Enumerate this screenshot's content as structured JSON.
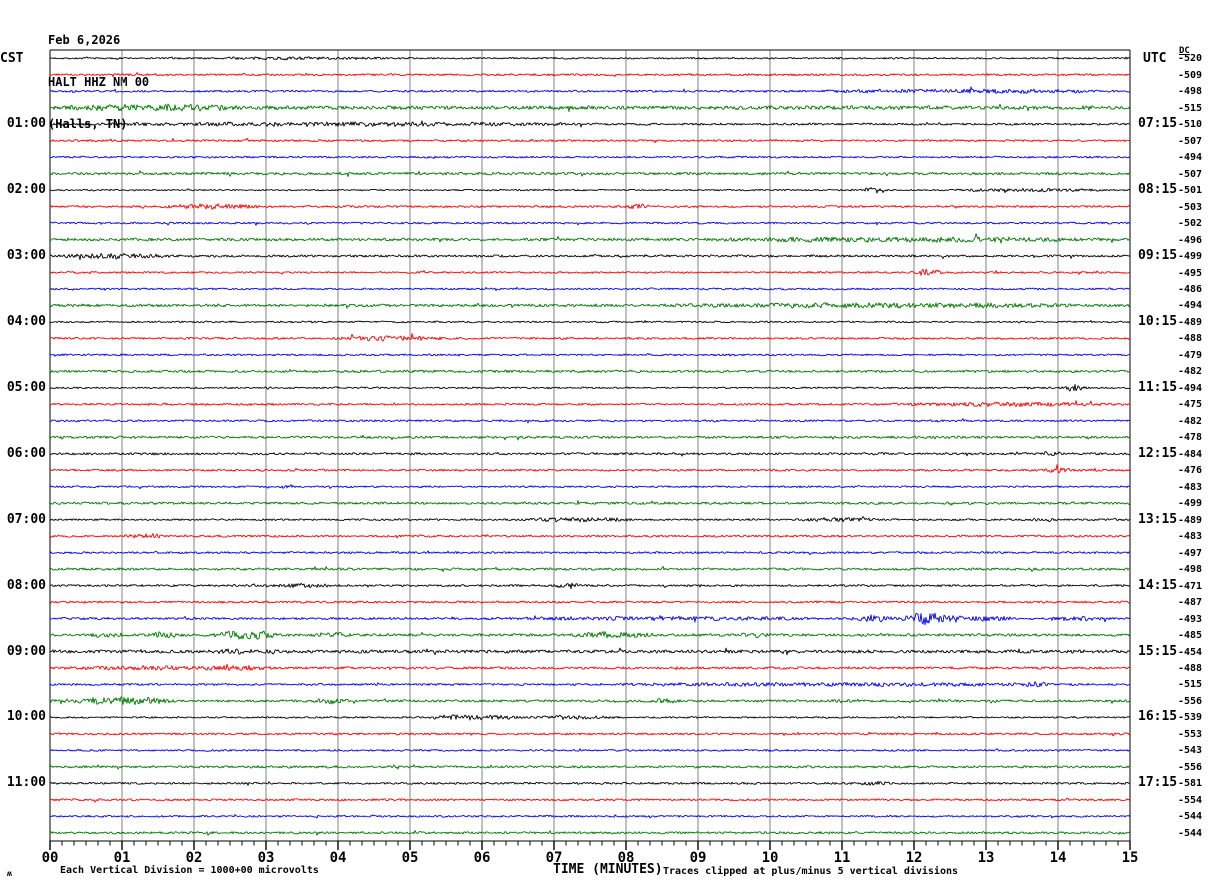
{
  "header": {
    "date": "Feb 6,2026",
    "station": "HALT HHZ NM 00",
    "location": "(Halls, TN)",
    "left_tz": "CST",
    "right_tz": "UTC",
    "dc_header": "DC"
  },
  "footer": {
    "left_note": "Each Vertical Division = 1000+00 microvolts",
    "axis_label": "TIME (MINUTES)",
    "right_note": "Traces clipped at plus/minus 5 vertical divisions",
    "watermark": "ʍ"
  },
  "chart_data": {
    "type": "line",
    "subtype": "helicorder-seismogram",
    "title": "Feb 6,2026 HALT HHZ NM 00 (Halls, TN)",
    "xlabel": "TIME (MINUTES)",
    "x_ticks": [
      "00",
      "01",
      "02",
      "03",
      "04",
      "05",
      "06",
      "07",
      "08",
      "09",
      "10",
      "11",
      "12",
      "13",
      "14",
      "15"
    ],
    "x_range_minutes": [
      0,
      15
    ],
    "minutes_per_row": 15,
    "rows_per_hour": 4,
    "minor_tick_intervals_per_minute": 6,
    "grid": true,
    "grid_color": "#808080",
    "axis_color": "#000000",
    "colors": {
      "black": "#000000",
      "red": "#ff0000",
      "blue": "#0000ee",
      "green": "#007700"
    },
    "color_cycle": [
      "black",
      "red",
      "blue",
      "green"
    ],
    "rows": [
      {
        "color": "black",
        "cst": "",
        "utc": "",
        "dc": "-520",
        "amp": 0.9,
        "events": [
          [
            2,
            5,
            1.3
          ]
        ]
      },
      {
        "color": "red",
        "cst": "",
        "utc": "",
        "dc": "-509",
        "amp": 1.1,
        "events": []
      },
      {
        "color": "blue",
        "cst": "",
        "utc": "",
        "dc": "-498",
        "amp": 1.1,
        "events": [
          [
            10.5,
            15,
            1.9
          ]
        ]
      },
      {
        "color": "green",
        "cst": "",
        "utc": "",
        "dc": "-515",
        "amp": 2.0,
        "events": [
          [
            0,
            3,
            2.8
          ]
        ]
      },
      {
        "color": "black",
        "cst": "01:00",
        "utc": "07:15",
        "dc": "-510",
        "amp": 1.1,
        "events": [
          [
            0,
            8,
            1.9
          ]
        ]
      },
      {
        "color": "red",
        "cst": "",
        "utc": "",
        "dc": "-507",
        "amp": 1.1,
        "events": []
      },
      {
        "color": "blue",
        "cst": "",
        "utc": "",
        "dc": "-494",
        "amp": 1.0,
        "events": []
      },
      {
        "color": "green",
        "cst": "",
        "utc": "",
        "dc": "-507",
        "amp": 1.4,
        "events": []
      },
      {
        "color": "black",
        "cst": "02:00",
        "utc": "08:15",
        "dc": "-501",
        "amp": 0.8,
        "events": [
          [
            11.2,
            11.7,
            2.8
          ],
          [
            12.4,
            14.8,
            1.5
          ]
        ]
      },
      {
        "color": "red",
        "cst": "",
        "utc": "",
        "dc": "-503",
        "amp": 1.1,
        "events": [
          [
            1.5,
            3.0,
            2.4
          ],
          [
            8.0,
            8.4,
            2.2
          ]
        ]
      },
      {
        "color": "blue",
        "cst": "",
        "utc": "",
        "dc": "-502",
        "amp": 1.0,
        "events": []
      },
      {
        "color": "green",
        "cst": "",
        "utc": "",
        "dc": "-496",
        "amp": 1.5,
        "events": [
          [
            8.5,
            15,
            2.2
          ]
        ]
      },
      {
        "color": "black",
        "cst": "03:00",
        "utc": "09:15",
        "dc": "-499",
        "amp": 1.2,
        "events": [
          [
            0,
            1.8,
            2.4
          ]
        ]
      },
      {
        "color": "red",
        "cst": "",
        "utc": "",
        "dc": "-495",
        "amp": 1.0,
        "events": [
          [
            12.0,
            12.4,
            3.4
          ]
        ]
      },
      {
        "color": "blue",
        "cst": "",
        "utc": "",
        "dc": "-486",
        "amp": 1.0,
        "events": []
      },
      {
        "color": "green",
        "cst": "",
        "utc": "",
        "dc": "-494",
        "amp": 1.5,
        "events": [
          [
            8,
            15,
            2.1
          ]
        ]
      },
      {
        "color": "black",
        "cst": "04:00",
        "utc": "10:15",
        "dc": "-489",
        "amp": 0.9,
        "events": []
      },
      {
        "color": "red",
        "cst": "",
        "utc": "",
        "dc": "-488",
        "amp": 1.1,
        "events": [
          [
            3.9,
            5.6,
            2.3
          ]
        ]
      },
      {
        "color": "blue",
        "cst": "",
        "utc": "",
        "dc": "-479",
        "amp": 1.0,
        "events": []
      },
      {
        "color": "green",
        "cst": "",
        "utc": "",
        "dc": "-482",
        "amp": 1.3,
        "events": []
      },
      {
        "color": "black",
        "cst": "05:00",
        "utc": "11:15",
        "dc": "-494",
        "amp": 0.9,
        "events": [
          [
            14.0,
            14.4,
            3.4
          ]
        ]
      },
      {
        "color": "red",
        "cst": "",
        "utc": "",
        "dc": "-475",
        "amp": 1.1,
        "events": [
          [
            11.5,
            15,
            1.9
          ]
        ]
      },
      {
        "color": "blue",
        "cst": "",
        "utc": "",
        "dc": "-482",
        "amp": 1.1,
        "events": []
      },
      {
        "color": "green",
        "cst": "",
        "utc": "",
        "dc": "-478",
        "amp": 1.3,
        "events": []
      },
      {
        "color": "black",
        "cst": "06:00",
        "utc": "12:15",
        "dc": "-484",
        "amp": 1.2,
        "events": [
          [
            13.7,
            14.1,
            1.9
          ]
        ]
      },
      {
        "color": "red",
        "cst": "",
        "utc": "",
        "dc": "-476",
        "amp": 1.1,
        "events": [
          [
            13.8,
            14.2,
            2.5
          ]
        ]
      },
      {
        "color": "blue",
        "cst": "",
        "utc": "",
        "dc": "-483",
        "amp": 1.0,
        "events": [
          [
            3.1,
            3.5,
            2.3
          ]
        ]
      },
      {
        "color": "green",
        "cst": "",
        "utc": "",
        "dc": "-499",
        "amp": 1.3,
        "events": []
      },
      {
        "color": "black",
        "cst": "07:00",
        "utc": "13:15",
        "dc": "-489",
        "amp": 1.0,
        "events": [
          [
            6.5,
            8.2,
            2.2
          ],
          [
            10.3,
            11.6,
            1.9
          ],
          [
            13.6,
            14.0,
            2.1
          ]
        ]
      },
      {
        "color": "red",
        "cst": "",
        "utc": "",
        "dc": "-483",
        "amp": 1.1,
        "events": [
          [
            1.0,
            1.6,
            2.5
          ]
        ]
      },
      {
        "color": "blue",
        "cst": "",
        "utc": "",
        "dc": "-497",
        "amp": 1.1,
        "events": []
      },
      {
        "color": "green",
        "cst": "",
        "utc": "",
        "dc": "-498",
        "amp": 1.3,
        "events": []
      },
      {
        "color": "black",
        "cst": "08:00",
        "utc": "14:15",
        "dc": "-471",
        "amp": 1.1,
        "events": [
          [
            2.9,
            4.1,
            1.9
          ],
          [
            7.0,
            7.4,
            3.4
          ]
        ]
      },
      {
        "color": "red",
        "cst": "",
        "utc": "",
        "dc": "-487",
        "amp": 1.1,
        "events": []
      },
      {
        "color": "blue",
        "cst": "",
        "utc": "",
        "dc": "-493",
        "amp": 1.2,
        "events": [
          [
            6,
            11,
            1.8
          ],
          [
            11.1,
            11.8,
            3.2
          ],
          [
            11.8,
            12.7,
            6.0
          ],
          [
            12.7,
            13.4,
            2.5
          ],
          [
            13.9,
            14.7,
            2.5
          ]
        ]
      },
      {
        "color": "green",
        "cst": "",
        "utc": "",
        "dc": "-485",
        "amp": 1.4,
        "events": [
          [
            0.5,
            1.1,
            2.2
          ],
          [
            1.3,
            1.9,
            2.7
          ],
          [
            2.2,
            3.2,
            4.2
          ],
          [
            3.6,
            4.2,
            2.7
          ],
          [
            7.2,
            8.5,
            3.0
          ],
          [
            9.5,
            10.1,
            2.0
          ]
        ]
      },
      {
        "color": "black",
        "cst": "09:00",
        "utc": "15:15",
        "dc": "-454",
        "amp": 1.7,
        "events": [
          [
            2.2,
            3.2,
            2.1
          ]
        ]
      },
      {
        "color": "red",
        "cst": "",
        "utc": "",
        "dc": "-488",
        "amp": 1.3,
        "events": [
          [
            0,
            3.5,
            1.8
          ],
          [
            2.3,
            3.0,
            2.8
          ]
        ]
      },
      {
        "color": "blue",
        "cst": "",
        "utc": "",
        "dc": "-515",
        "amp": 1.1,
        "events": [
          [
            7,
            15,
            1.6
          ],
          [
            13.5,
            13.9,
            2.7
          ]
        ]
      },
      {
        "color": "green",
        "cst": "",
        "utc": "",
        "dc": "-556",
        "amp": 1.3,
        "events": [
          [
            0.1,
            1.8,
            3.8
          ],
          [
            3.6,
            4.2,
            2.5
          ],
          [
            8.3,
            8.8,
            2.1
          ],
          [
            10.8,
            11.3,
            2.1
          ]
        ]
      },
      {
        "color": "black",
        "cst": "10:00",
        "utc": "16:15",
        "dc": "-539",
        "amp": 0.9,
        "events": [
          [
            5.2,
            6.6,
            3.0
          ],
          [
            6.6,
            7.9,
            1.7
          ]
        ]
      },
      {
        "color": "red",
        "cst": "",
        "utc": "",
        "dc": "-553",
        "amp": 1.1,
        "events": []
      },
      {
        "color": "blue",
        "cst": "",
        "utc": "",
        "dc": "-543",
        "amp": 1.0,
        "events": []
      },
      {
        "color": "green",
        "cst": "",
        "utc": "",
        "dc": "-556",
        "amp": 1.2,
        "events": []
      },
      {
        "color": "black",
        "cst": "11:00",
        "utc": "17:15",
        "dc": "-581",
        "amp": 1.1,
        "events": [
          [
            11.2,
            11.7,
            2.1
          ]
        ]
      },
      {
        "color": "red",
        "cst": "",
        "utc": "",
        "dc": "-554",
        "amp": 1.1,
        "events": []
      },
      {
        "color": "blue",
        "cst": "",
        "utc": "",
        "dc": "-544",
        "amp": 1.0,
        "events": []
      },
      {
        "color": "green",
        "cst": "",
        "utc": "",
        "dc": "-544",
        "amp": 1.2,
        "events": []
      }
    ]
  }
}
